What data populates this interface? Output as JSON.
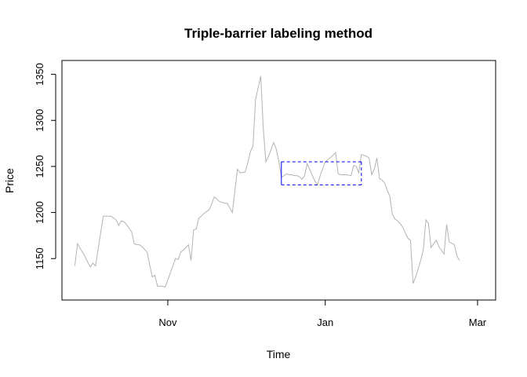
{
  "chart_data": {
    "type": "line",
    "title": "Triple-barrier labeling method",
    "xlabel": "Time",
    "ylabel": "Price",
    "x_axis": "date",
    "xlim": [
      "2014-09-21",
      "2015-03-08"
    ],
    "ylim": [
      1105,
      1365
    ],
    "x_ticks": [
      {
        "date": "2014-11-01",
        "label": "Nov"
      },
      {
        "date": "2015-01-01",
        "label": "Jan"
      },
      {
        "date": "2015-03-01",
        "label": "Mar"
      }
    ],
    "y_ticks": [
      1150,
      1200,
      1250,
      1300,
      1350
    ],
    "grid": false,
    "series": [
      {
        "color": "#b3b3b3",
        "x": [
          "2014-09-26",
          "2014-09-27",
          "2014-09-30",
          "2014-10-01",
          "2014-10-02",
          "2014-10-03",
          "2014-10-04",
          "2014-10-07",
          "2014-10-08",
          "2014-10-09",
          "2014-10-10",
          "2014-10-11",
          "2014-10-12",
          "2014-10-13",
          "2014-10-14",
          "2014-10-15",
          "2014-10-16",
          "2014-10-17",
          "2014-10-18",
          "2014-10-19",
          "2014-10-20",
          "2014-10-21",
          "2014-10-22",
          "2014-10-23",
          "2014-10-24",
          "2014-10-25",
          "2014-10-26",
          "2014-10-27",
          "2014-10-28",
          "2014-10-29",
          "2014-10-30",
          "2014-10-31",
          "2014-11-04",
          "2014-11-05",
          "2014-11-06",
          "2014-11-07",
          "2014-11-08",
          "2014-11-09",
          "2014-11-10",
          "2014-11-11",
          "2014-11-12",
          "2014-11-13",
          "2014-11-14",
          "2014-11-15",
          "2014-11-17",
          "2014-11-18",
          "2014-11-19",
          "2014-11-21",
          "2014-11-22",
          "2014-11-23",
          "2014-11-24",
          "2014-11-26",
          "2014-11-28",
          "2014-11-29",
          "2014-12-01",
          "2014-12-02",
          "2014-12-03",
          "2014-12-04",
          "2014-12-05",
          "2014-12-07",
          "2014-12-08",
          "2014-12-09",
          "2014-12-10",
          "2014-12-11",
          "2014-12-12",
          "2014-12-13",
          "2014-12-14",
          "2014-12-15",
          "2014-12-17",
          "2014-12-18",
          "2014-12-19",
          "2014-12-20",
          "2014-12-21",
          "2014-12-22",
          "2014-12-23",
          "2014-12-24",
          "2014-12-25",
          "2014-12-27",
          "2014-12-28",
          "2014-12-29",
          "2014-12-30",
          "2015-01-01",
          "2015-01-04",
          "2015-01-05",
          "2015-01-06",
          "2015-01-07",
          "2015-01-08",
          "2015-01-09",
          "2015-01-11",
          "2015-01-12",
          "2015-01-13",
          "2015-01-14",
          "2015-01-15",
          "2015-01-16",
          "2015-01-17",
          "2015-01-18",
          "2015-01-19",
          "2015-01-20",
          "2015-01-21",
          "2015-01-22",
          "2015-01-23",
          "2015-01-24",
          "2015-01-25",
          "2015-01-26",
          "2015-01-27",
          "2015-01-28",
          "2015-01-29",
          "2015-01-30",
          "2015-01-31",
          "2015-02-01",
          "2015-02-02",
          "2015-02-03",
          "2015-02-04",
          "2015-02-05",
          "2015-02-06",
          "2015-02-07",
          "2015-02-08",
          "2015-02-09",
          "2015-02-10",
          "2015-02-11",
          "2015-02-13",
          "2015-02-14",
          "2015-02-16",
          "2015-02-17",
          "2015-02-18",
          "2015-02-20",
          "2015-02-21",
          "2015-02-22"
        ],
        "values": [
          1142,
          1166,
          1152,
          1146,
          1141,
          1145,
          1142,
          1196,
          1196,
          1196,
          1196,
          1194,
          1192,
          1186,
          1191,
          1190,
          1187,
          1183,
          1179,
          1166,
          1165,
          1165,
          1163,
          1160,
          1157,
          1143,
          1130,
          1132,
          1120,
          1120,
          1120,
          1119,
          1150,
          1149,
          1157,
          1159,
          1162,
          1165,
          1148,
          1181,
          1182,
          1194,
          1196,
          1199,
          1203,
          1209,
          1217,
          1212,
          1211,
          1210,
          1210,
          1200,
          1247,
          1243,
          1244,
          1254,
          1266,
          1272,
          1323,
          1348,
          1290,
          1255,
          1261,
          1268,
          1276,
          1269,
          1256,
          1238,
          1242,
          1241,
          1241,
          1240,
          1240,
          1239,
          1236,
          1240,
          1253,
          1240,
          1234,
          1230,
          1240,
          1255,
          1262,
          1265,
          1242,
          1241,
          1241,
          1241,
          1240,
          1251,
          1250,
          1243,
          1263,
          1262,
          1261,
          1259,
          1241,
          1247,
          1259,
          1237,
          1235,
          1232,
          1224,
          1218,
          1198,
          1193,
          1191,
          1188,
          1184,
          1178,
          1172,
          1170,
          1123,
          1130,
          1139,
          1148,
          1160,
          1192,
          1188,
          1162,
          1170,
          1163,
          1155,
          1187,
          1168,
          1165,
          1153,
          1148
        ]
      }
    ],
    "barrier_box": {
      "color": "#0000ff",
      "x_start": "2014-12-15",
      "x_end": "2015-01-15",
      "upper": 1255,
      "lower": 1230
    }
  }
}
